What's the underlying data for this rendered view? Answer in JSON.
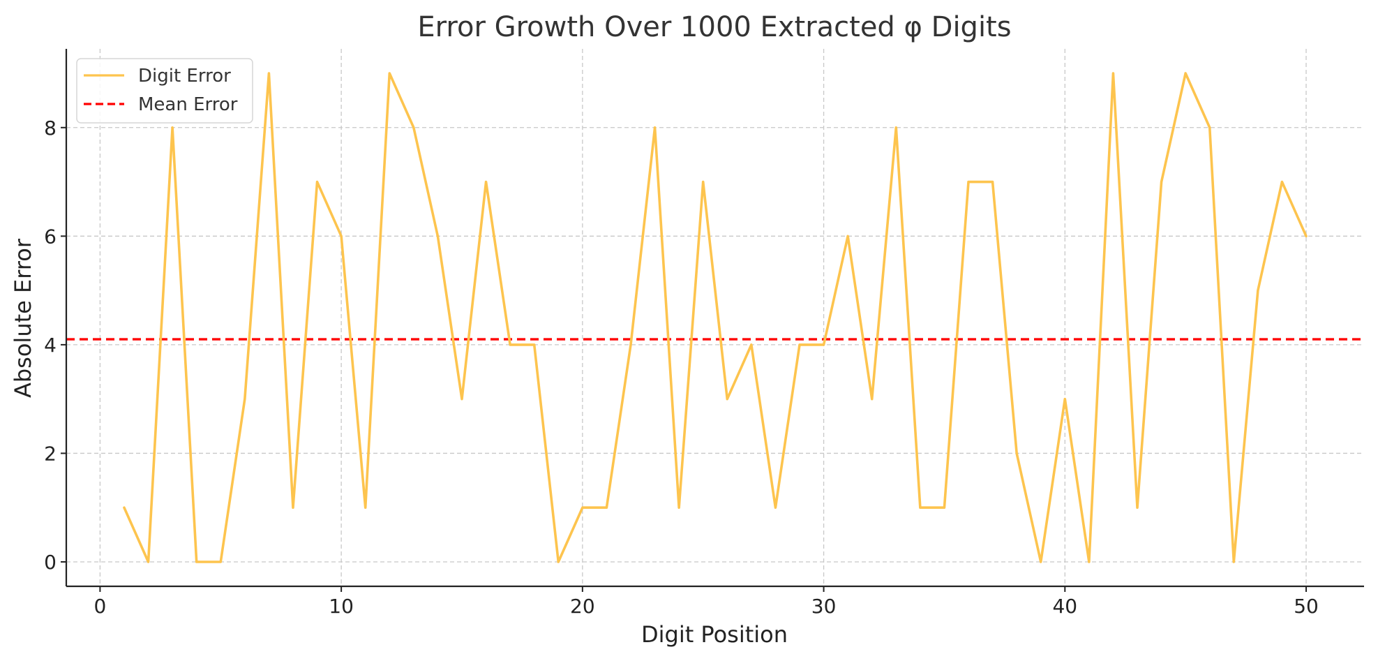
{
  "chart_data": {
    "type": "line",
    "title": "Error Growth Over 1000 Extracted φ Digits",
    "xlabel": "Digit Position",
    "ylabel": "Absolute Error",
    "xlim": [
      -1.4,
      52.4
    ],
    "ylim": [
      -0.45,
      9.45
    ],
    "xticks": [
      0,
      10,
      20,
      30,
      40,
      50
    ],
    "yticks": [
      0,
      2,
      4,
      6,
      8
    ],
    "grid": true,
    "legend_position": "top-left",
    "x": [
      1,
      2,
      3,
      4,
      5,
      6,
      7,
      8,
      9,
      10,
      11,
      12,
      13,
      14,
      15,
      16,
      17,
      18,
      19,
      20,
      21,
      22,
      23,
      24,
      25,
      26,
      27,
      28,
      29,
      30,
      31,
      32,
      33,
      34,
      35,
      36,
      37,
      38,
      39,
      40,
      41,
      42,
      43,
      44,
      45,
      46,
      47,
      48,
      49,
      50
    ],
    "series": [
      {
        "name": "Digit Error",
        "color": "#FDC44E",
        "style": "solid",
        "values": [
          1,
          0,
          8,
          0,
          0,
          3,
          9,
          1,
          7,
          6,
          1,
          9,
          8,
          6,
          3,
          7,
          4,
          4,
          0,
          1,
          1,
          4,
          8,
          1,
          7,
          3,
          4,
          1,
          4,
          4,
          6,
          3,
          8,
          1,
          1,
          7,
          7,
          2,
          0,
          3,
          0,
          9,
          1,
          7,
          9,
          8,
          0,
          5,
          7,
          6
        ]
      },
      {
        "name": "Mean Error",
        "color": "#FF0000",
        "style": "dashed",
        "type": "hline",
        "value": 4.1
      }
    ]
  }
}
